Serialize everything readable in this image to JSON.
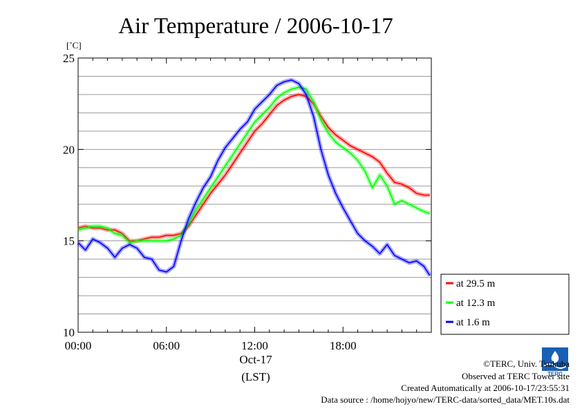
{
  "chart_data": {
    "type": "line",
    "title": "Air Temperature / 2006-10-17",
    "ylabel": "[˚C]",
    "xlabel_date": "Oct-17",
    "xlabel_tz": "(LST)",
    "xlim": [
      0,
      24
    ],
    "ylim": [
      10,
      25
    ],
    "x_ticks": [
      {
        "value": 0,
        "label": "00:00"
      },
      {
        "value": 6,
        "label": "06:00"
      },
      {
        "value": 12,
        "label": "12:00"
      },
      {
        "value": 18,
        "label": "18:00"
      }
    ],
    "y_ticks": [
      {
        "value": 10,
        "label": "10"
      },
      {
        "value": 15,
        "label": "15"
      },
      {
        "value": 20,
        "label": "20"
      },
      {
        "value": 25,
        "label": "25"
      }
    ],
    "grid": true,
    "legend_position": "right-bottom",
    "series": [
      {
        "name": "at 29.5 m",
        "color": "#ff0000",
        "points": [
          [
            0,
            15.7
          ],
          [
            0.5,
            15.8
          ],
          [
            1,
            15.7
          ],
          [
            1.5,
            15.7
          ],
          [
            2,
            15.6
          ],
          [
            2.5,
            15.6
          ],
          [
            3,
            15.4
          ],
          [
            3.5,
            15.0
          ],
          [
            4,
            15.0
          ],
          [
            4.5,
            15.1
          ],
          [
            5,
            15.2
          ],
          [
            5.5,
            15.2
          ],
          [
            6,
            15.3
          ],
          [
            6.5,
            15.3
          ],
          [
            7,
            15.4
          ],
          [
            7.5,
            15.8
          ],
          [
            8,
            16.4
          ],
          [
            8.5,
            17.0
          ],
          [
            9,
            17.6
          ],
          [
            9.5,
            18.1
          ],
          [
            10,
            18.6
          ],
          [
            10.5,
            19.2
          ],
          [
            11,
            19.8
          ],
          [
            11.5,
            20.4
          ],
          [
            12,
            21.0
          ],
          [
            12.5,
            21.4
          ],
          [
            13,
            21.9
          ],
          [
            13.5,
            22.4
          ],
          [
            14,
            22.7
          ],
          [
            14.5,
            22.9
          ],
          [
            15,
            23.0
          ],
          [
            15.5,
            22.9
          ],
          [
            16,
            22.5
          ],
          [
            16.5,
            21.8
          ],
          [
            17,
            21.2
          ],
          [
            17.5,
            20.8
          ],
          [
            18,
            20.5
          ],
          [
            18.5,
            20.2
          ],
          [
            19,
            20.0
          ],
          [
            19.5,
            19.8
          ],
          [
            20,
            19.6
          ],
          [
            20.5,
            19.3
          ],
          [
            21,
            18.7
          ],
          [
            21.5,
            18.2
          ],
          [
            22,
            18.1
          ],
          [
            22.5,
            17.9
          ],
          [
            23,
            17.6
          ],
          [
            23.5,
            17.5
          ],
          [
            23.9,
            17.5
          ]
        ]
      },
      {
        "name": "at 12.3 m",
        "color": "#00ff00",
        "points": [
          [
            0,
            15.6
          ],
          [
            0.5,
            15.7
          ],
          [
            1,
            15.8
          ],
          [
            1.5,
            15.8
          ],
          [
            2,
            15.7
          ],
          [
            2.5,
            15.4
          ],
          [
            3,
            15.3
          ],
          [
            3.5,
            14.9
          ],
          [
            4,
            15.0
          ],
          [
            4.5,
            15.0
          ],
          [
            5,
            15.0
          ],
          [
            5.5,
            15.0
          ],
          [
            6,
            15.0
          ],
          [
            6.5,
            15.1
          ],
          [
            7,
            15.3
          ],
          [
            7.5,
            15.9
          ],
          [
            8,
            16.7
          ],
          [
            8.5,
            17.3
          ],
          [
            9,
            17.9
          ],
          [
            9.5,
            18.5
          ],
          [
            10,
            19.1
          ],
          [
            10.5,
            19.7
          ],
          [
            11,
            20.3
          ],
          [
            11.5,
            20.9
          ],
          [
            12,
            21.5
          ],
          [
            12.5,
            21.9
          ],
          [
            13,
            22.3
          ],
          [
            13.5,
            22.8
          ],
          [
            14,
            23.1
          ],
          [
            14.5,
            23.3
          ],
          [
            15,
            23.4
          ],
          [
            15.5,
            23.3
          ],
          [
            16,
            22.6
          ],
          [
            16.5,
            21.6
          ],
          [
            17,
            20.9
          ],
          [
            17.5,
            20.4
          ],
          [
            18,
            20.1
          ],
          [
            18.5,
            19.8
          ],
          [
            19,
            19.4
          ],
          [
            19.5,
            18.8
          ],
          [
            20,
            17.9
          ],
          [
            20.5,
            18.6
          ],
          [
            21,
            18.0
          ],
          [
            21.5,
            17.0
          ],
          [
            22,
            17.2
          ],
          [
            22.5,
            17.0
          ],
          [
            23,
            16.8
          ],
          [
            23.5,
            16.6
          ],
          [
            23.9,
            16.5
          ]
        ]
      },
      {
        "name": "at 1.6 m",
        "color": "#0000ff",
        "points": [
          [
            0,
            14.9
          ],
          [
            0.5,
            14.5
          ],
          [
            1,
            15.1
          ],
          [
            1.5,
            14.9
          ],
          [
            2,
            14.6
          ],
          [
            2.5,
            14.1
          ],
          [
            3,
            14.6
          ],
          [
            3.5,
            14.8
          ],
          [
            4,
            14.6
          ],
          [
            4.5,
            14.1
          ],
          [
            5,
            14.0
          ],
          [
            5.5,
            13.4
          ],
          [
            6,
            13.3
          ],
          [
            6.5,
            13.6
          ],
          [
            7,
            15.0
          ],
          [
            7.5,
            16.2
          ],
          [
            8,
            17.1
          ],
          [
            8.5,
            17.9
          ],
          [
            9,
            18.5
          ],
          [
            9.5,
            19.4
          ],
          [
            10,
            20.1
          ],
          [
            10.5,
            20.6
          ],
          [
            11,
            21.1
          ],
          [
            11.5,
            21.5
          ],
          [
            12,
            22.2
          ],
          [
            12.5,
            22.6
          ],
          [
            13,
            23.0
          ],
          [
            13.5,
            23.5
          ],
          [
            14,
            23.7
          ],
          [
            14.5,
            23.8
          ],
          [
            15,
            23.6
          ],
          [
            15.5,
            23.0
          ],
          [
            16,
            21.8
          ],
          [
            16.5,
            20.0
          ],
          [
            17,
            18.6
          ],
          [
            17.5,
            17.6
          ],
          [
            18,
            16.8
          ],
          [
            18.5,
            16.1
          ],
          [
            19,
            15.4
          ],
          [
            19.5,
            15.0
          ],
          [
            20,
            14.7
          ],
          [
            20.5,
            14.3
          ],
          [
            21,
            14.8
          ],
          [
            21.5,
            14.2
          ],
          [
            22,
            14.0
          ],
          [
            22.5,
            13.8
          ],
          [
            23,
            13.9
          ],
          [
            23.5,
            13.6
          ],
          [
            23.9,
            13.1
          ]
        ]
      }
    ]
  },
  "credits": {
    "copyright": "©TERC, Univ. Tsukuba",
    "site": "Observed at TERC Tower site",
    "created": "Created Automatically at 2006-10-17/23:55:31",
    "source": "Data source : /home/hojyo/new/TERC-data/sorted_data/MET.10s.dat",
    "logo_text": "TERC"
  }
}
